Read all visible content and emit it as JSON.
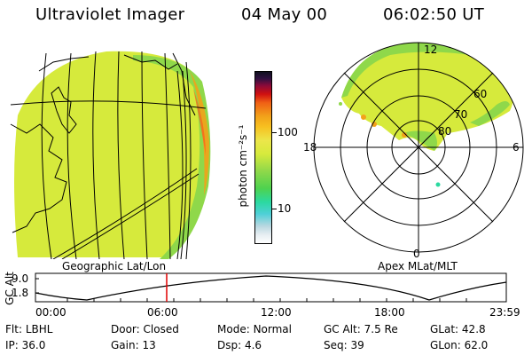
{
  "header": {
    "title": "Ultraviolet Imager",
    "date": "04 May 00",
    "time": "06:02:50 UT"
  },
  "geo_panel": {
    "label": "Geographic Lat/Lon"
  },
  "polar_panel": {
    "label": "Apex MLat/MLT",
    "mlt_labels": {
      "top": "12",
      "left": "18",
      "right": "6",
      "bottom": "0"
    },
    "lat_labels": [
      "80",
      "70",
      "60"
    ]
  },
  "colorbar": {
    "unit_label": "photon cm⁻²s⁻¹",
    "ticks": [
      "100",
      "10"
    ]
  },
  "altitude_plot": {
    "ylabel": "GC Alt",
    "yticks": [
      "9.0",
      "1.8"
    ],
    "xticks": [
      "00:00",
      "06:00",
      "12:00",
      "18:00",
      "23:59"
    ],
    "cursor_time": "06:02:50"
  },
  "info": {
    "rows": [
      [
        {
          "key": "Flt:",
          "value": "LBHL"
        },
        {
          "key": "Door:",
          "value": "Closed"
        },
        {
          "key": "Mode:",
          "value": "Normal"
        },
        {
          "key": "GC Alt:",
          "value": "7.5 Re"
        },
        {
          "key": "GLat:",
          "value": "42.8"
        }
      ],
      [
        {
          "key": "IP:",
          "value": "36.0"
        },
        {
          "key": "Gain:",
          "value": "13"
        },
        {
          "key": "Dsp:",
          "value": "4.6"
        },
        {
          "key": "Seq:",
          "value": "39"
        },
        {
          "key": "GLon:",
          "value": "62.0"
        }
      ]
    ]
  },
  "colors": {
    "emission_main": "#d6ea3c",
    "emission_green": "#8fd84a",
    "emission_orange": "#f2a21a",
    "cursor": "#e00000"
  }
}
